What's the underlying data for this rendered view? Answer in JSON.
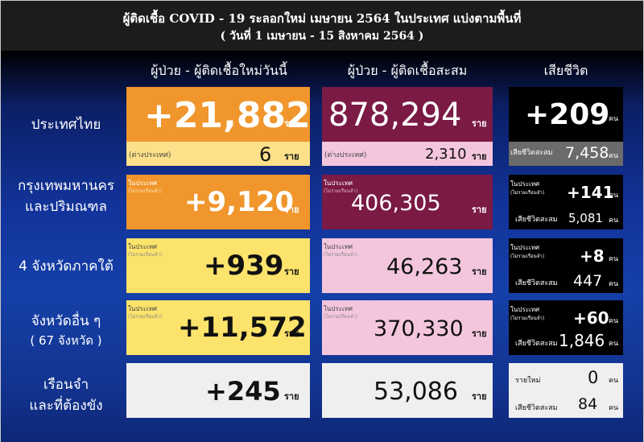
{
  "title": {
    "line1": "ผู้ติดเชื้อ COVID - 19 ระลอกใหม่ เมษายน 2564 ในประเทศ แบ่งตามพื้นที่",
    "line2": "( วันที่ 1 เมษายน - 15 สิงหาคม 2564 )"
  },
  "columns": {
    "new": "ผู้ป่วย - ผู้ติดเชื้อใหม่วันนี้",
    "total": "ผู้ป่วย - ผู้ติดเชื้อสะสม",
    "deaths": "เสียชีวิต"
  },
  "units": {
    "person": "ราย",
    "death": "คน"
  },
  "labels": {
    "overseas": "(ต่างประเทศ)",
    "domestic": "ในประเทศ",
    "excl_prison": "(ไม่รวมเรือนจำ)",
    "cum_deaths": "เสียชีวิตสะสม",
    "new_deaths": "รายใหม่"
  },
  "colors": {
    "orange": "#f0962c",
    "yellow": "#fce36b",
    "pale_yellow": "#fde08a",
    "maroon": "#7a1a45",
    "pink": "#f4c6dd",
    "black": "#000000",
    "gray": "#6b6b6b",
    "light_gray": "#efefef"
  },
  "rows": {
    "thailand": {
      "label": "ประเทศไทย",
      "new": "+21,882",
      "new_overseas": "6",
      "total": "878,294",
      "total_overseas": "2,310",
      "deaths_new": "+209",
      "deaths_cum": "7,458"
    },
    "bangkok": {
      "label_line1": "กรุงเทพมหานคร",
      "label_line2": "และปริมณฑล",
      "new": "+9,120",
      "total": "406,305",
      "deaths_new": "+141",
      "deaths_cum": "5,081"
    },
    "south": {
      "label": "4 จังหวัดภาคใต้",
      "new": "+939",
      "total": "46,263",
      "deaths_new": "+8",
      "deaths_cum": "447"
    },
    "other": {
      "label_line1": "จังหวัดอื่น ๆ",
      "label_line2": "( 67 จังหวัด )",
      "new": "+11,572",
      "total": "370,330",
      "deaths_new": "+60",
      "deaths_cum": "1,846"
    },
    "prison": {
      "label_line1": "เรือนจำ",
      "label_line2": "และที่ต้องขัง",
      "new": "+245",
      "total": "53,086",
      "deaths_new": "0",
      "deaths_cum": "84"
    }
  }
}
